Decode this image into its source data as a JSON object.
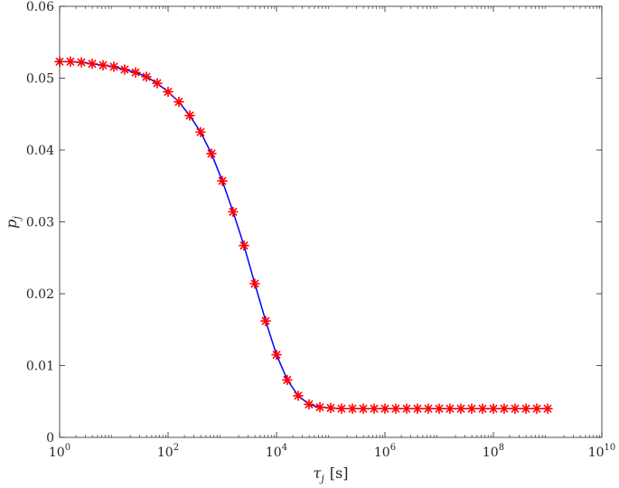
{
  "chart_data": {
    "type": "line",
    "x_scale": "log",
    "xlim": [
      1,
      10000000000
    ],
    "ylim": [
      0,
      0.06
    ],
    "x_ticks": [
      1,
      100,
      10000,
      1000000,
      100000000,
      10000000000
    ],
    "x_tick_labels": [
      {
        "base": "10",
        "exp": "0"
      },
      {
        "base": "10",
        "exp": "2"
      },
      {
        "base": "10",
        "exp": "4"
      },
      {
        "base": "10",
        "exp": "6"
      },
      {
        "base": "10",
        "exp": "8"
      },
      {
        "base": "10",
        "exp": "10"
      }
    ],
    "y_ticks": [
      0,
      0.01,
      0.02,
      0.03,
      0.04,
      0.05,
      0.06
    ],
    "y_tick_labels": [
      "0",
      "0.01",
      "0.02",
      "0.03",
      "0.04",
      "0.05",
      "0.06"
    ],
    "xlabel": {
      "symbol": "τ",
      "sub": "j",
      "unit": "[s]"
    },
    "ylabel": {
      "symbol": "p",
      "sub": "j"
    },
    "grid": false,
    "series": [
      {
        "style": "line",
        "color": "#0000ff",
        "x": [
          1,
          1.58,
          2.51,
          3.98,
          6.31,
          10,
          15.8,
          25.1,
          39.8,
          63.1,
          100,
          158,
          251,
          398,
          631,
          1000,
          1580,
          2510,
          3980,
          6310,
          10000,
          15800,
          25100,
          39800,
          63100,
          100000,
          158000,
          251000,
          398000,
          631000,
          1000000,
          1580000,
          2510000,
          3980000,
          6310000,
          10000000,
          15800000,
          25100000,
          39800000,
          63100000,
          100000000,
          158000000,
          251000000,
          398000000,
          631000000,
          1000000000
        ],
        "y": [
          0.0523,
          0.0523,
          0.0522,
          0.052,
          0.0518,
          0.0516,
          0.0512,
          0.0508,
          0.0502,
          0.0493,
          0.0481,
          0.0467,
          0.0448,
          0.0425,
          0.0395,
          0.0357,
          0.0314,
          0.0267,
          0.0214,
          0.0162,
          0.0115,
          0.008,
          0.0058,
          0.0046,
          0.0042,
          0.0041,
          0.004,
          0.004,
          0.004,
          0.004,
          0.004,
          0.004,
          0.004,
          0.004,
          0.004,
          0.004,
          0.004,
          0.004,
          0.004,
          0.004,
          0.004,
          0.004,
          0.004,
          0.004,
          0.004,
          0.004
        ]
      },
      {
        "style": "markers",
        "marker": "asterisk",
        "color": "#ff0000",
        "x": [
          1,
          1.58,
          2.51,
          3.98,
          6.31,
          10,
          15.8,
          25.1,
          39.8,
          63.1,
          100,
          158,
          251,
          398,
          631,
          1000,
          1580,
          2510,
          3980,
          6310,
          10000,
          15800,
          25100,
          39800,
          63100,
          100000,
          158000,
          251000,
          398000,
          631000,
          1000000,
          1580000,
          2510000,
          3980000,
          6310000,
          10000000,
          15800000,
          25100000,
          39800000,
          63100000,
          100000000,
          158000000,
          251000000,
          398000000,
          631000000,
          1000000000
        ],
        "y": [
          0.0523,
          0.0523,
          0.0522,
          0.052,
          0.0518,
          0.0516,
          0.0512,
          0.0508,
          0.0502,
          0.0493,
          0.0481,
          0.0467,
          0.0448,
          0.0425,
          0.0395,
          0.0357,
          0.0314,
          0.0267,
          0.0214,
          0.0162,
          0.0115,
          0.008,
          0.0058,
          0.0046,
          0.0042,
          0.0041,
          0.004,
          0.004,
          0.004,
          0.004,
          0.004,
          0.004,
          0.004,
          0.004,
          0.004,
          0.004,
          0.004,
          0.004,
          0.004,
          0.004,
          0.004,
          0.004,
          0.004,
          0.004,
          0.004,
          0.004
        ]
      }
    ]
  }
}
